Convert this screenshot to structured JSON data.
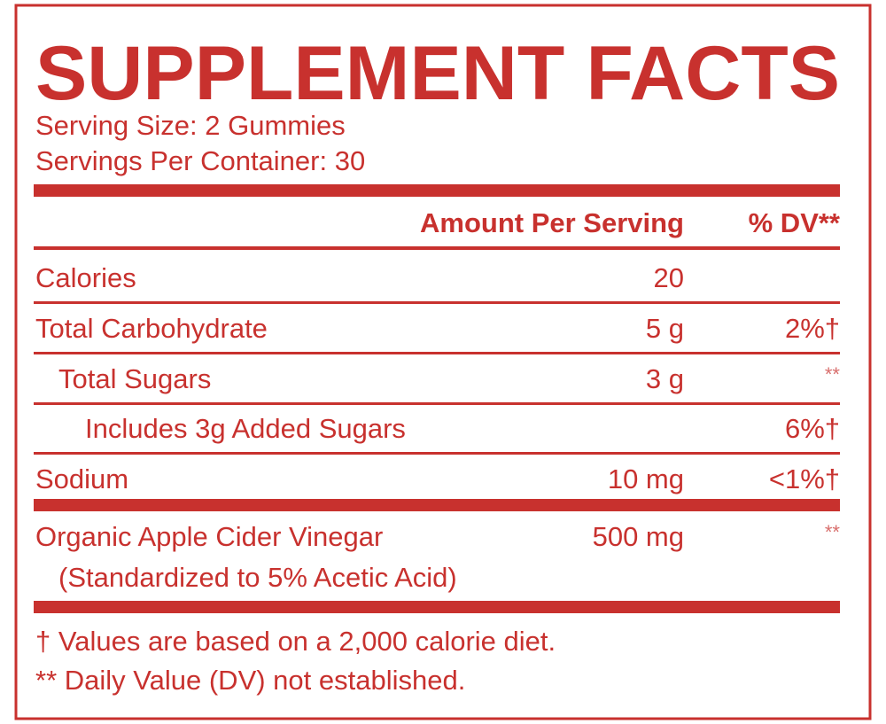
{
  "title": "SUPPLEMENT FACTS",
  "serving_size": "Serving Size: 2 Gummies",
  "servings_per_container": "Servings Per Container: 30",
  "table": {
    "header": {
      "amount": "Amount Per Serving",
      "dv": "% DV**"
    },
    "rows": [
      {
        "name": "Calories",
        "amount": "20"
      },
      {
        "name": "Total Carbohydrate",
        "amount": "5 g",
        "dv": "2%†"
      },
      {
        "name": "Total Sugars",
        "amount": "3 g",
        "dv": "**"
      },
      {
        "name": "Includes 3g Added Sugars",
        "dv": "6%†"
      },
      {
        "name": "Sodium",
        "amount": "10 mg",
        "dv": "<1%†"
      },
      {
        "name": "Organic Apple Cider Vinegar",
        "detail": "(Standardized to 5% Acetic Acid)",
        "amount": "500 mg",
        "dv": "**"
      }
    ]
  },
  "footnotes": [
    "†  Values are based on a 2,000 calorie diet.",
    "** Daily Value (DV) not established."
  ]
}
